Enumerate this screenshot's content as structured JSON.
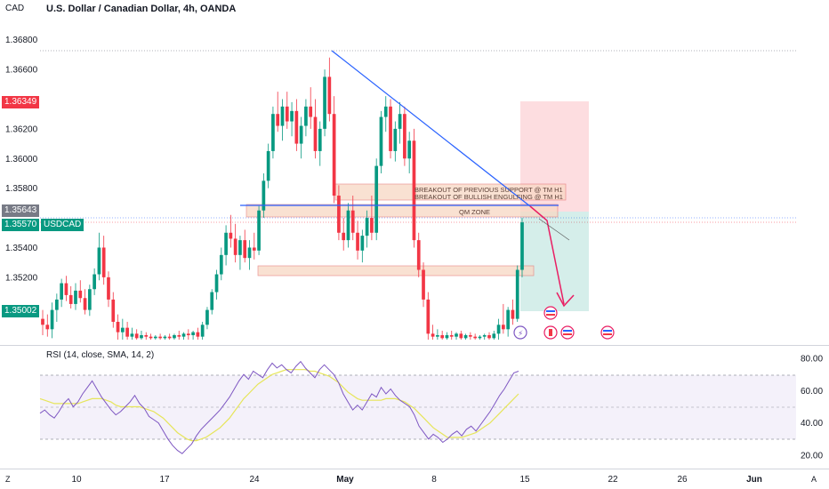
{
  "header": {
    "title": "U.S. Dollar / Canadian Dollar, 4h, OANDA",
    "currency": "CAD"
  },
  "price_labels": {
    "upper": "1.36349",
    "mid": "1.35643",
    "current": "1.35570",
    "symbol": "USDCAD",
    "lower": "1.35002"
  },
  "annotations": {
    "breakout_support": "BREAKOUT OF PREVIOUS SUPPORT @ TM H1",
    "breakout_engulfing": "BREAKOUT OF BULLISH ENGULFING @ TM H1",
    "qm_zone": "QM ZONE"
  },
  "rsi": {
    "label": "RSI (14, close, SMA, 14, 2)"
  },
  "bottom": {
    "left": "Z",
    "right": "A"
  },
  "colors": {
    "bull": "#089981",
    "bear": "#f23645",
    "trend": "#2962ff",
    "rsi": "#7e57c2",
    "rsi_ma": "#e6e55a",
    "zone": "#f8d8c4",
    "arrow": "#e91e63"
  },
  "chart_data": [
    {
      "type": "candlestick",
      "title": "U.S. Dollar / Canadian Dollar, 4h, OANDA",
      "ylim": [
        1.3478,
        1.369
      ],
      "y_ticks": [
        "1.36800",
        "1.36600",
        "1.36400",
        "1.36200",
        "1.36000",
        "1.35800",
        "1.35400",
        "1.35200"
      ],
      "x_ticks": [
        "10",
        "17",
        "24",
        "May",
        "8",
        "15",
        "22",
        "26",
        "Jun"
      ],
      "series": [
        {
          "points": [
            [
              1.3492,
              1.3498,
              1.3481,
              1.3488
            ],
            [
              1.3488,
              1.3495,
              1.348,
              1.3485
            ],
            [
              1.3485,
              1.3503,
              1.3479,
              1.3498
            ],
            [
              1.3498,
              1.3509,
              1.349,
              1.3505
            ],
            [
              1.3505,
              1.3519,
              1.35,
              1.3516
            ],
            [
              1.3516,
              1.3521,
              1.3504,
              1.3508
            ],
            [
              1.3508,
              1.3514,
              1.3499,
              1.3502
            ],
            [
              1.3502,
              1.3516,
              1.3498,
              1.3511
            ],
            [
              1.3511,
              1.3518,
              1.3503,
              1.3506
            ],
            [
              1.3506,
              1.3512,
              1.3495,
              1.3498
            ],
            [
              1.3498,
              1.3515,
              1.3494,
              1.3512
            ],
            [
              1.3512,
              1.3526,
              1.3508,
              1.3522
            ],
            [
              1.3522,
              1.355,
              1.3518,
              1.354
            ],
            [
              1.354,
              1.3548,
              1.3515,
              1.352
            ],
            [
              1.352,
              1.3524,
              1.35,
              1.3505
            ],
            [
              1.3505,
              1.351,
              1.3486,
              1.349
            ],
            [
              1.349,
              1.3495,
              1.3478,
              1.3483
            ],
            [
              1.3483,
              1.3492,
              1.3478,
              1.3486
            ],
            [
              1.3486,
              1.349,
              1.3478,
              1.348
            ],
            [
              1.348,
              1.3486,
              1.3478,
              1.3482
            ],
            [
              1.3482,
              1.3485,
              1.3478,
              1.3479
            ],
            [
              1.3479,
              1.3484,
              1.3478,
              1.3481
            ],
            [
              1.3481,
              1.3483,
              1.3478,
              1.348
            ],
            [
              1.348,
              1.3482,
              1.3478,
              1.3479
            ],
            [
              1.3479,
              1.3481,
              1.3478,
              1.348
            ],
            [
              1.348,
              1.3482,
              1.3478,
              1.3479
            ],
            [
              1.3479,
              1.3481,
              1.3478,
              1.348
            ],
            [
              1.348,
              1.3482,
              1.3478,
              1.3479
            ],
            [
              1.3479,
              1.3482,
              1.3478,
              1.3481
            ],
            [
              1.3481,
              1.3484,
              1.3478,
              1.348
            ],
            [
              1.348,
              1.3483,
              1.3478,
              1.3482
            ],
            [
              1.3482,
              1.3485,
              1.3478,
              1.3481
            ],
            [
              1.3481,
              1.3484,
              1.3478,
              1.3483
            ],
            [
              1.3483,
              1.3486,
              1.3478,
              1.348
            ],
            [
              1.348,
              1.349,
              1.3478,
              1.3488
            ],
            [
              1.3488,
              1.35,
              1.3485,
              1.3498
            ],
            [
              1.3498,
              1.3512,
              1.3495,
              1.351
            ],
            [
              1.351,
              1.3525,
              1.3505,
              1.3522
            ],
            [
              1.3522,
              1.354,
              1.3518,
              1.3535
            ],
            [
              1.3535,
              1.3555,
              1.3528,
              1.355
            ],
            [
              1.355,
              1.3562,
              1.354,
              1.3546
            ],
            [
              1.3546,
              1.3556,
              1.353,
              1.3535
            ],
            [
              1.3535,
              1.3548,
              1.3525,
              1.3545
            ],
            [
              1.3545,
              1.3552,
              1.353,
              1.3533
            ],
            [
              1.3533,
              1.3545,
              1.3525,
              1.354
            ],
            [
              1.354,
              1.355,
              1.3532,
              1.3538
            ],
            [
              1.3538,
              1.3568,
              1.3535,
              1.3565
            ],
            [
              1.3565,
              1.359,
              1.356,
              1.3585
            ],
            [
              1.3585,
              1.361,
              1.358,
              1.3605
            ],
            [
              1.3605,
              1.3635,
              1.36,
              1.363
            ],
            [
              1.363,
              1.3645,
              1.3618,
              1.3622
            ],
            [
              1.3622,
              1.364,
              1.3612,
              1.3635
            ],
            [
              1.3635,
              1.3645,
              1.362,
              1.3625
            ],
            [
              1.3625,
              1.3638,
              1.3615,
              1.3632
            ],
            [
              1.3632,
              1.364,
              1.3605,
              1.361
            ],
            [
              1.361,
              1.3628,
              1.36,
              1.3622
            ],
            [
              1.3622,
              1.364,
              1.3615,
              1.3635
            ],
            [
              1.3635,
              1.3648,
              1.362,
              1.3628
            ],
            [
              1.3628,
              1.364,
              1.36,
              1.3605
            ],
            [
              1.3605,
              1.3625,
              1.3595,
              1.362
            ],
            [
              1.362,
              1.366,
              1.3615,
              1.3655
            ],
            [
              1.3655,
              1.3668,
              1.3625,
              1.363
            ],
            [
              1.363,
              1.3642,
              1.357,
              1.3575
            ],
            [
              1.3575,
              1.3582,
              1.3545,
              1.355
            ],
            [
              1.355,
              1.356,
              1.3538,
              1.3545
            ],
            [
              1.3545,
              1.357,
              1.354,
              1.3565
            ],
            [
              1.3565,
              1.3575,
              1.3545,
              1.355
            ],
            [
              1.355,
              1.3558,
              1.3532,
              1.3538
            ],
            [
              1.3538,
              1.3552,
              1.353,
              1.3548
            ],
            [
              1.3548,
              1.3565,
              1.354,
              1.356
            ],
            [
              1.356,
              1.3575,
              1.3545,
              1.355
            ],
            [
              1.355,
              1.36,
              1.3545,
              1.3595
            ],
            [
              1.3595,
              1.3632,
              1.359,
              1.3628
            ],
            [
              1.3628,
              1.3642,
              1.3618,
              1.3635
            ],
            [
              1.3635,
              1.364,
              1.36,
              1.3605
            ],
            [
              1.3605,
              1.3625,
              1.3598,
              1.362
            ],
            [
              1.362,
              1.3638,
              1.361,
              1.363
            ],
            [
              1.363,
              1.3635,
              1.3595,
              1.36
            ],
            [
              1.36,
              1.3618,
              1.359,
              1.3612
            ],
            [
              1.3612,
              1.362,
              1.354,
              1.3545
            ],
            [
              1.3545,
              1.355,
              1.352,
              1.3525
            ],
            [
              1.3525,
              1.353,
              1.35,
              1.3505
            ],
            [
              1.3505,
              1.351,
              1.3478,
              1.3482
            ],
            [
              1.3482,
              1.3488,
              1.3478,
              1.348
            ],
            [
              1.348,
              1.3485,
              1.3478,
              1.3481
            ],
            [
              1.3481,
              1.3484,
              1.3478,
              1.3479
            ],
            [
              1.3479,
              1.3483,
              1.3478,
              1.3481
            ],
            [
              1.3481,
              1.3484,
              1.3478,
              1.348
            ],
            [
              1.348,
              1.3483,
              1.3478,
              1.3482
            ],
            [
              1.3482,
              1.3484,
              1.3478,
              1.3479
            ],
            [
              1.3479,
              1.3482,
              1.3478,
              1.3481
            ],
            [
              1.3481,
              1.3483,
              1.3478,
              1.348
            ],
            [
              1.348,
              1.3482,
              1.3478,
              1.3479
            ],
            [
              1.3479,
              1.3481,
              1.3478,
              1.348
            ],
            [
              1.348,
              1.3482,
              1.3478,
              1.3481
            ],
            [
              1.3481,
              1.3483,
              1.3478,
              1.3479
            ],
            [
              1.3479,
              1.3484,
              1.3478,
              1.3482
            ],
            [
              1.3482,
              1.3492,
              1.3478,
              1.3488
            ],
            [
              1.3488,
              1.3502,
              1.3482,
              1.3485
            ],
            [
              1.3485,
              1.35,
              1.348,
              1.3498
            ],
            [
              1.3498,
              1.3505,
              1.3488,
              1.3492
            ],
            [
              1.3492,
              1.3528,
              1.349,
              1.3525
            ],
            [
              1.3525,
              1.356,
              1.352,
              1.3557
            ]
          ]
        }
      ]
    },
    {
      "type": "line",
      "title": "RSI (14, close, SMA, 14, 2)",
      "ylim": [
        20,
        80
      ],
      "y_ticks": [
        "80.00",
        "60.00",
        "40.00",
        "20.00"
      ],
      "series": [
        {
          "values": [
            46,
            48,
            45,
            43,
            47,
            52,
            55,
            50,
            53,
            58,
            62,
            66,
            61,
            56,
            52,
            48,
            45,
            47,
            50,
            53,
            57,
            52,
            49,
            44,
            42,
            40,
            35,
            30,
            26,
            23,
            21,
            24,
            27,
            32,
            36,
            39,
            42,
            45,
            48,
            52,
            56,
            61,
            66,
            70,
            67,
            72,
            70,
            68,
            73,
            77,
            74,
            76,
            73,
            71,
            75,
            78,
            74,
            71,
            68,
            73,
            76,
            73,
            70,
            65,
            58,
            53,
            48,
            51,
            48,
            53,
            58,
            56,
            62,
            58,
            61,
            57,
            54,
            52,
            50,
            45,
            38,
            34,
            30,
            33,
            31,
            28,
            30,
            33,
            35,
            32,
            36,
            38,
            35,
            39,
            43,
            47,
            52,
            57,
            61,
            66,
            71,
            72
          ]
        },
        {
          "values": [
            55,
            54,
            53,
            52,
            52,
            52,
            52,
            52,
            52,
            53,
            54,
            55,
            55,
            55,
            54,
            53,
            51,
            50,
            50,
            50,
            50,
            50,
            49,
            48,
            47,
            45,
            43,
            40,
            37,
            34,
            32,
            30,
            29,
            29,
            30,
            31,
            33,
            35,
            37,
            40,
            43,
            47,
            51,
            55,
            58,
            61,
            64,
            66,
            68,
            70,
            71,
            72,
            73,
            73,
            73,
            73,
            73,
            72,
            72,
            71,
            70,
            69,
            67,
            65,
            62,
            59,
            57,
            55,
            54,
            54,
            54,
            54,
            54,
            55,
            55,
            55,
            54,
            53,
            51,
            49,
            46,
            43,
            40,
            37,
            35,
            33,
            31,
            31,
            31,
            31,
            32,
            33,
            34,
            36,
            38,
            40,
            43,
            46,
            49,
            52,
            55,
            58
          ]
        }
      ]
    }
  ]
}
